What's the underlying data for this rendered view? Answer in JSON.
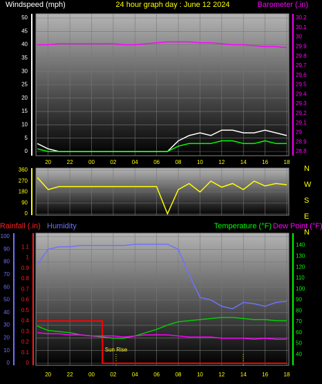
{
  "chart_data": [
    {
      "type": "line",
      "title": "24 hour graph day : June 12 2024",
      "categories": [
        null,
        "20",
        null,
        "22",
        null,
        "00",
        null,
        "02",
        null,
        "04",
        null,
        "06",
        null,
        "08",
        null,
        "10",
        null,
        "12",
        null,
        "14",
        null,
        "16",
        null,
        "18"
      ],
      "ylim": [
        0,
        50
      ],
      "yticks": [
        0,
        5,
        10,
        15,
        20,
        25,
        30,
        35,
        40,
        45,
        50
      ],
      "y2lim": [
        28.8,
        30.2
      ],
      "y2ticks": [
        28.8,
        28.9,
        29,
        29.1,
        29.2,
        29.3,
        29.4,
        29.5,
        29.6,
        29.7,
        29.8,
        29.9,
        30,
        30.1,
        30.2
      ],
      "grid": true,
      "series": [
        {
          "name": "Windspeed (mph)",
          "color": "#ffffff",
          "values": [
            3,
            1,
            0,
            0,
            0,
            0,
            0,
            0,
            0,
            0,
            0,
            0,
            0,
            4,
            6,
            7,
            6,
            8,
            8,
            7,
            7,
            8,
            7,
            6
          ]
        },
        {
          "color": "#00ff00",
          "values": [
            1,
            0,
            0,
            0,
            0,
            0,
            0,
            0,
            0,
            0,
            0,
            0,
            0,
            2,
            3,
            3,
            3,
            4,
            4,
            3,
            3,
            4,
            3,
            3
          ]
        },
        {
          "name": "Barometer (.in)",
          "color": "#ff00ff",
          "axis": "y2",
          "values": [
            29.92,
            29.92,
            29.93,
            29.93,
            29.93,
            29.93,
            29.93,
            29.93,
            29.92,
            29.92,
            29.93,
            29.94,
            29.95,
            29.95,
            29.95,
            29.94,
            29.94,
            29.93,
            29.92,
            29.92,
            29.91,
            29.9,
            29.9,
            29.89
          ]
        }
      ]
    },
    {
      "type": "line",
      "categories": [
        null,
        "20",
        null,
        "22",
        null,
        "00",
        null,
        "02",
        null,
        "04",
        null,
        "06",
        null,
        "08",
        null,
        "10",
        null,
        "12",
        null,
        "14",
        null,
        "16",
        null,
        "18"
      ],
      "ylim": [
        0,
        360
      ],
      "yticks": [
        0,
        90,
        180,
        270,
        360
      ],
      "grid": true,
      "compass_labels": [
        "N",
        "W",
        "S",
        "E",
        "N"
      ],
      "series": [
        {
          "color": "#ffff00",
          "values": [
            300,
            200,
            225,
            225,
            225,
            225,
            225,
            225,
            225,
            225,
            225,
            225,
            0,
            200,
            250,
            180,
            270,
            220,
            250,
            200,
            270,
            230,
            250,
            240
          ]
        }
      ]
    },
    {
      "type": "line",
      "categories": [
        null,
        "20",
        null,
        "22",
        null,
        "00",
        null,
        "02",
        null,
        "04",
        null,
        "06",
        null,
        "08",
        null,
        "10",
        null,
        "12",
        null,
        "14",
        null,
        "16",
        null,
        "18"
      ],
      "ylim": [
        0,
        1.2
      ],
      "yticks": [
        0,
        0.1,
        0.2,
        0.3,
        0.4,
        0.5,
        0.6,
        0.7,
        0.8,
        0.9,
        1,
        1.1
      ],
      "y3lim": [
        0,
        100
      ],
      "y3ticks": [
        0,
        10,
        20,
        30,
        40,
        50,
        60,
        70,
        80,
        90,
        100
      ],
      "y2lim": [
        32,
        148
      ],
      "y2ticks": [
        40,
        50,
        60,
        70,
        80,
        90,
        100,
        110,
        120,
        130,
        140
      ],
      "grid": true,
      "annotation": "Sun Rise",
      "series": [
        {
          "name": "Rainfall (.in)",
          "color": "#ff0000",
          "step": true,
          "values": [
            0.4,
            0.4,
            0.4,
            0.4,
            0.4,
            0.4,
            0,
            0,
            0,
            0,
            0,
            0,
            0,
            0,
            0,
            0,
            0,
            0,
            0,
            0,
            0,
            0,
            0,
            0
          ]
        },
        {
          "name": "Humidity",
          "color": "#7070ff",
          "axis": "y3",
          "values": [
            78,
            90,
            92,
            92,
            93,
            93,
            93,
            93,
            93,
            94,
            94,
            94,
            94,
            90,
            70,
            52,
            50,
            45,
            43,
            48,
            47,
            45,
            48,
            49
          ]
        },
        {
          "name": "Temperature (°F)",
          "color": "#00d000",
          "axis": "y2",
          "values": [
            66,
            62,
            61,
            60,
            58,
            57,
            56,
            55,
            55,
            57,
            60,
            63,
            67,
            70,
            71,
            72,
            73,
            74,
            74,
            73,
            72,
            72,
            71,
            71
          ]
        },
        {
          "name": "Dew Point (°F)",
          "color": "#ff00ff",
          "axis": "y2",
          "values": [
            60,
            59,
            59,
            58,
            58,
            57,
            57,
            57,
            56,
            57,
            58,
            58,
            58,
            57,
            56,
            56,
            56,
            55,
            55,
            55,
            54,
            55,
            54,
            54
          ]
        }
      ]
    }
  ]
}
